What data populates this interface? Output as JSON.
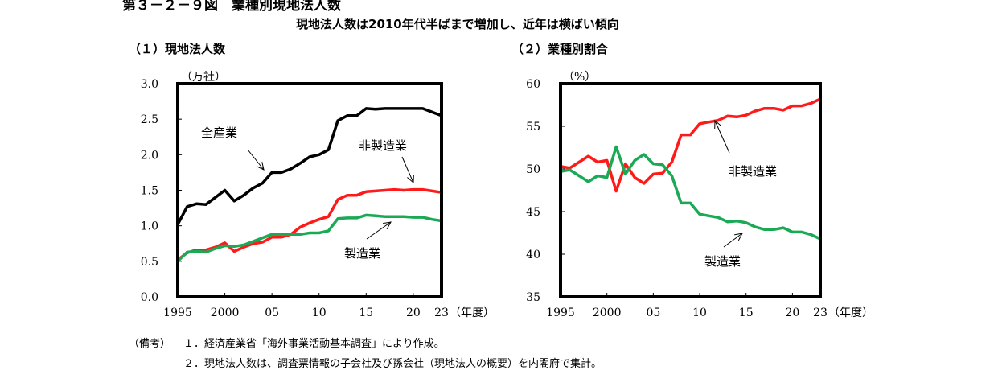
{
  "figure": {
    "title": "第３－２－９図　業種別現地法人数",
    "subtitle": "現地法人数は2010年代半ばまで増加し、近年は横ばい傾向"
  },
  "notes": {
    "head": "（備考）",
    "items": [
      "１．経済産業省「海外事業活動基本調査」により作成。",
      "２．現地法人数は、調査票情報の子会社及び孫会社（現地法人の概要）を内閣府で集計。"
    ]
  },
  "colors": {
    "total": "#000000",
    "non_manufacturing": "#ff1a1a",
    "manufacturing": "#1aaa55"
  },
  "chart_data": [
    {
      "type": "line",
      "title": "（１）現地法人数",
      "ylabel": "（万社）",
      "xlabel": "（年度）",
      "xlim": [
        1995,
        2023
      ],
      "ylim": [
        0,
        3
      ],
      "x_ticks": [
        1995,
        2000,
        2005,
        2010,
        2015,
        2020,
        2023
      ],
      "x_tick_labels": [
        "1995",
        "2000",
        "05",
        "10",
        "15",
        "20",
        "23"
      ],
      "y_ticks": [
        0,
        0.5,
        1,
        1.5,
        2,
        2.5,
        3
      ],
      "y_tick_labels": [
        "0.0",
        "0.5",
        "1.0",
        "1.5",
        "2.0",
        "2.5",
        "3.0"
      ],
      "x": [
        1995,
        1996,
        1997,
        1998,
        1999,
        2000,
        2001,
        2002,
        2003,
        2004,
        2005,
        2006,
        2007,
        2008,
        2009,
        2010,
        2011,
        2012,
        2013,
        2014,
        2015,
        2016,
        2017,
        2018,
        2019,
        2020,
        2021,
        2022,
        2023
      ],
      "series": [
        {
          "key": "total",
          "name": "全産業",
          "values": [
            1.02,
            1.27,
            1.31,
            1.3,
            1.4,
            1.5,
            1.35,
            1.43,
            1.53,
            1.6,
            1.75,
            1.75,
            1.8,
            1.88,
            1.97,
            2.0,
            2.07,
            2.48,
            2.55,
            2.55,
            2.65,
            2.64,
            2.65,
            2.65,
            2.65,
            2.65,
            2.65,
            2.6,
            2.55
          ]
        },
        {
          "key": "non_manufacturing",
          "name": "非製造業",
          "values": [
            0.52,
            0.62,
            0.66,
            0.66,
            0.7,
            0.76,
            0.64,
            0.7,
            0.75,
            0.77,
            0.84,
            0.84,
            0.88,
            0.98,
            1.04,
            1.09,
            1.13,
            1.37,
            1.43,
            1.43,
            1.48,
            1.49,
            1.5,
            1.51,
            1.5,
            1.51,
            1.51,
            1.49,
            1.47
          ]
        },
        {
          "key": "manufacturing",
          "name": "製造業",
          "values": [
            0.5,
            0.63,
            0.64,
            0.63,
            0.68,
            0.72,
            0.71,
            0.73,
            0.78,
            0.83,
            0.88,
            0.88,
            0.88,
            0.88,
            0.9,
            0.9,
            0.93,
            1.1,
            1.11,
            1.11,
            1.15,
            1.14,
            1.13,
            1.13,
            1.13,
            1.12,
            1.12,
            1.09,
            1.07
          ]
        }
      ],
      "annotations": [
        "全産業",
        "非製造業",
        "製造業"
      ]
    },
    {
      "type": "line",
      "title": "（２）業種別割合",
      "ylabel": "（%）",
      "xlabel": "（年度）",
      "xlim": [
        1995,
        2023
      ],
      "ylim": [
        35,
        60
      ],
      "x_ticks": [
        1995,
        2000,
        2005,
        2010,
        2015,
        2020,
        2023
      ],
      "x_tick_labels": [
        "1995",
        "2000",
        "05",
        "10",
        "15",
        "20",
        "23"
      ],
      "y_ticks": [
        35,
        40,
        45,
        50,
        55,
        60
      ],
      "y_tick_labels": [
        "35",
        "40",
        "45",
        "50",
        "55",
        "60"
      ],
      "x": [
        1995,
        1996,
        1997,
        1998,
        1999,
        2000,
        2001,
        2002,
        2003,
        2004,
        2005,
        2006,
        2007,
        2008,
        2009,
        2010,
        2011,
        2012,
        2013,
        2014,
        2015,
        2016,
        2017,
        2018,
        2019,
        2020,
        2021,
        2022,
        2023
      ],
      "series": [
        {
          "key": "non_manufacturing",
          "name": "非製造業",
          "values": [
            50.3,
            50.1,
            50.8,
            51.5,
            50.8,
            51.0,
            47.4,
            50.6,
            49.0,
            48.3,
            49.4,
            49.5,
            50.8,
            54.0,
            54.0,
            55.3,
            55.5,
            55.7,
            56.2,
            56.1,
            56.3,
            56.8,
            57.1,
            57.1,
            56.9,
            57.4,
            57.4,
            57.7,
            58.2
          ]
        },
        {
          "key": "manufacturing",
          "name": "製造業",
          "values": [
            49.7,
            49.9,
            49.2,
            48.5,
            49.2,
            49.0,
            52.6,
            49.4,
            51.0,
            51.7,
            50.6,
            50.5,
            49.2,
            46.0,
            46.0,
            44.7,
            44.5,
            44.3,
            43.8,
            43.9,
            43.7,
            43.2,
            42.9,
            42.9,
            43.1,
            42.6,
            42.6,
            42.3,
            41.8
          ]
        }
      ],
      "annotations": [
        "非製造業",
        "製造業"
      ]
    }
  ]
}
